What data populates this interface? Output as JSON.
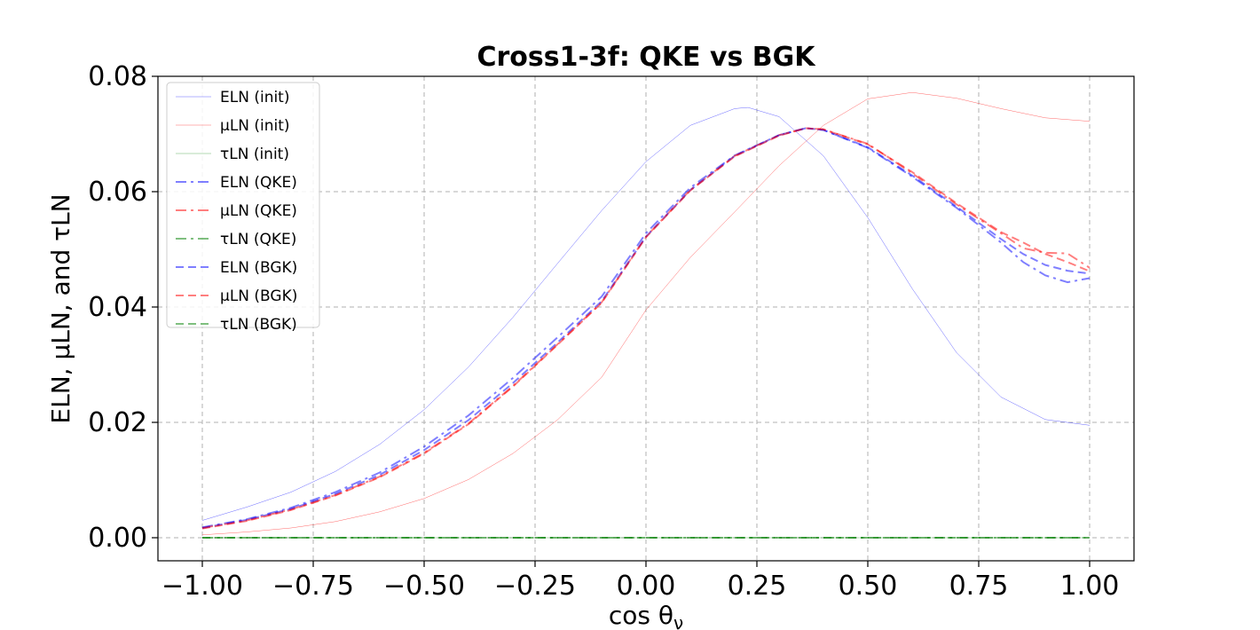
{
  "chart_data": {
    "type": "line",
    "title": "Cross1-3f: QKE vs BGK",
    "xlabel": "cos θ",
    "xlabel_sub": "ν",
    "ylabel": "ELN, μLN, and τLN",
    "xlim": [
      -1.1,
      1.1
    ],
    "ylim": [
      -0.004,
      0.08
    ],
    "xticks": [
      -1.0,
      -0.75,
      -0.5,
      -0.25,
      0.0,
      0.25,
      0.5,
      0.75,
      1.0
    ],
    "xtick_labels": [
      "−1.00",
      "−0.75",
      "−0.50",
      "−0.25",
      "0.00",
      "0.25",
      "0.50",
      "0.75",
      "1.00"
    ],
    "yticks": [
      0.0,
      0.02,
      0.04,
      0.06,
      0.08
    ],
    "ytick_labels": [
      "0.00",
      "0.02",
      "0.04",
      "0.06",
      "0.08"
    ],
    "grid": true,
    "legend_position": "top-left",
    "series": [
      {
        "name": "ELN (init)",
        "color": "#0000ff",
        "style": "solid",
        "width": 0.5,
        "opacity": 0.6,
        "x": [
          -1.0,
          -0.9,
          -0.8,
          -0.7,
          -0.6,
          -0.5,
          -0.4,
          -0.3,
          -0.2,
          -0.1,
          0.0,
          0.1,
          0.2,
          0.23,
          0.3,
          0.4,
          0.5,
          0.6,
          0.7,
          0.8,
          0.9,
          1.0
        ],
        "y": [
          0.003,
          0.0053,
          0.0079,
          0.0115,
          0.0162,
          0.0222,
          0.0296,
          0.0382,
          0.0475,
          0.0567,
          0.0652,
          0.0715,
          0.0744,
          0.0746,
          0.073,
          0.0662,
          0.0555,
          0.0432,
          0.0321,
          0.0244,
          0.0205,
          0.0195
        ]
      },
      {
        "name": "μLN (init)",
        "color": "#ff0000",
        "style": "solid",
        "width": 0.5,
        "opacity": 0.6,
        "x": [
          -1.0,
          -0.9,
          -0.8,
          -0.7,
          -0.6,
          -0.5,
          -0.4,
          -0.3,
          -0.2,
          -0.1,
          0.0,
          0.1,
          0.2,
          0.3,
          0.4,
          0.5,
          0.6,
          0.7,
          0.8,
          0.9,
          1.0
        ],
        "y": [
          0.0005,
          0.001,
          0.0017,
          0.0028,
          0.0045,
          0.0068,
          0.0101,
          0.0146,
          0.0204,
          0.0278,
          0.0395,
          0.0486,
          0.0565,
          0.0645,
          0.0715,
          0.0761,
          0.0772,
          0.0762,
          0.0744,
          0.0728,
          0.0722
        ]
      },
      {
        "name": "τLN (init)",
        "color": "#008000",
        "style": "solid",
        "width": 0.5,
        "opacity": 0.6,
        "x": [
          -1.0,
          1.0
        ],
        "y": [
          0.0,
          0.0
        ]
      },
      {
        "name": "ELN (QKE)",
        "color": "#0000ff",
        "style": "dashdot",
        "width": 2,
        "opacity": 0.5,
        "x": [
          -1.0,
          -0.9,
          -0.8,
          -0.7,
          -0.6,
          -0.5,
          -0.4,
          -0.3,
          -0.2,
          -0.1,
          0.0,
          0.1,
          0.2,
          0.3,
          0.36,
          0.4,
          0.5,
          0.6,
          0.7,
          0.8,
          0.85,
          0.9,
          0.95,
          1.0
        ],
        "y": [
          0.0018,
          0.0032,
          0.0052,
          0.0079,
          0.0113,
          0.0158,
          0.0212,
          0.0277,
          0.0347,
          0.0418,
          0.0528,
          0.0607,
          0.0663,
          0.0698,
          0.071,
          0.0707,
          0.0676,
          0.0626,
          0.0572,
          0.0512,
          0.0478,
          0.0455,
          0.0443,
          0.045
        ]
      },
      {
        "name": "μLN (QKE)",
        "color": "#ff0000",
        "style": "dashdot",
        "width": 2,
        "opacity": 0.5,
        "x": [
          -1.0,
          -0.9,
          -0.8,
          -0.7,
          -0.6,
          -0.5,
          -0.4,
          -0.3,
          -0.2,
          -0.1,
          0.0,
          0.1,
          0.2,
          0.3,
          0.36,
          0.4,
          0.5,
          0.6,
          0.7,
          0.8,
          0.85,
          0.9,
          0.95,
          1.0
        ],
        "y": [
          0.0017,
          0.003,
          0.0049,
          0.0074,
          0.0106,
          0.0147,
          0.0198,
          0.0263,
          0.0335,
          0.0408,
          0.0522,
          0.0603,
          0.0662,
          0.0698,
          0.071,
          0.0708,
          0.0683,
          0.0632,
          0.0578,
          0.0528,
          0.0502,
          0.0494,
          0.0493,
          0.0468
        ]
      },
      {
        "name": "τLN (QKE)",
        "color": "#008000",
        "style": "dashdot",
        "width": 2,
        "opacity": 0.5,
        "x": [
          -1.0,
          1.0
        ],
        "y": [
          0.0,
          0.0
        ]
      },
      {
        "name": "ELN (BGK)",
        "color": "#0000ff",
        "style": "dashed",
        "width": 2,
        "opacity": 0.5,
        "x": [
          -1.0,
          -0.9,
          -0.8,
          -0.7,
          -0.6,
          -0.5,
          -0.4,
          -0.3,
          -0.2,
          -0.1,
          0.0,
          0.1,
          0.2,
          0.3,
          0.36,
          0.4,
          0.5,
          0.6,
          0.7,
          0.8,
          0.85,
          0.9,
          0.95,
          1.0
        ],
        "y": [
          0.0017,
          0.0031,
          0.005,
          0.0076,
          0.0109,
          0.0152,
          0.0204,
          0.0268,
          0.0338,
          0.041,
          0.0522,
          0.0603,
          0.0662,
          0.0698,
          0.071,
          0.0707,
          0.0677,
          0.0628,
          0.0574,
          0.0518,
          0.0492,
          0.0473,
          0.0463,
          0.0458
        ]
      },
      {
        "name": "μLN (BGK)",
        "color": "#ff0000",
        "style": "dashed",
        "width": 2,
        "opacity": 0.5,
        "x": [
          -1.0,
          -0.9,
          -0.8,
          -0.7,
          -0.6,
          -0.5,
          -0.4,
          -0.3,
          -0.2,
          -0.1,
          0.0,
          0.1,
          0.2,
          0.3,
          0.36,
          0.4,
          0.5,
          0.6,
          0.7,
          0.8,
          0.85,
          0.9,
          0.95,
          1.0
        ],
        "y": [
          0.0016,
          0.0029,
          0.0048,
          0.0073,
          0.0105,
          0.0146,
          0.0197,
          0.0262,
          0.0334,
          0.0407,
          0.0521,
          0.0602,
          0.0661,
          0.0697,
          0.071,
          0.0708,
          0.0682,
          0.0634,
          0.058,
          0.053,
          0.0512,
          0.0492,
          0.0478,
          0.0462
        ]
      },
      {
        "name": "τLN (BGK)",
        "color": "#008000",
        "style": "dashed",
        "width": 2,
        "opacity": 0.5,
        "x": [
          -1.0,
          1.0
        ],
        "y": [
          0.0,
          0.0
        ]
      }
    ]
  }
}
